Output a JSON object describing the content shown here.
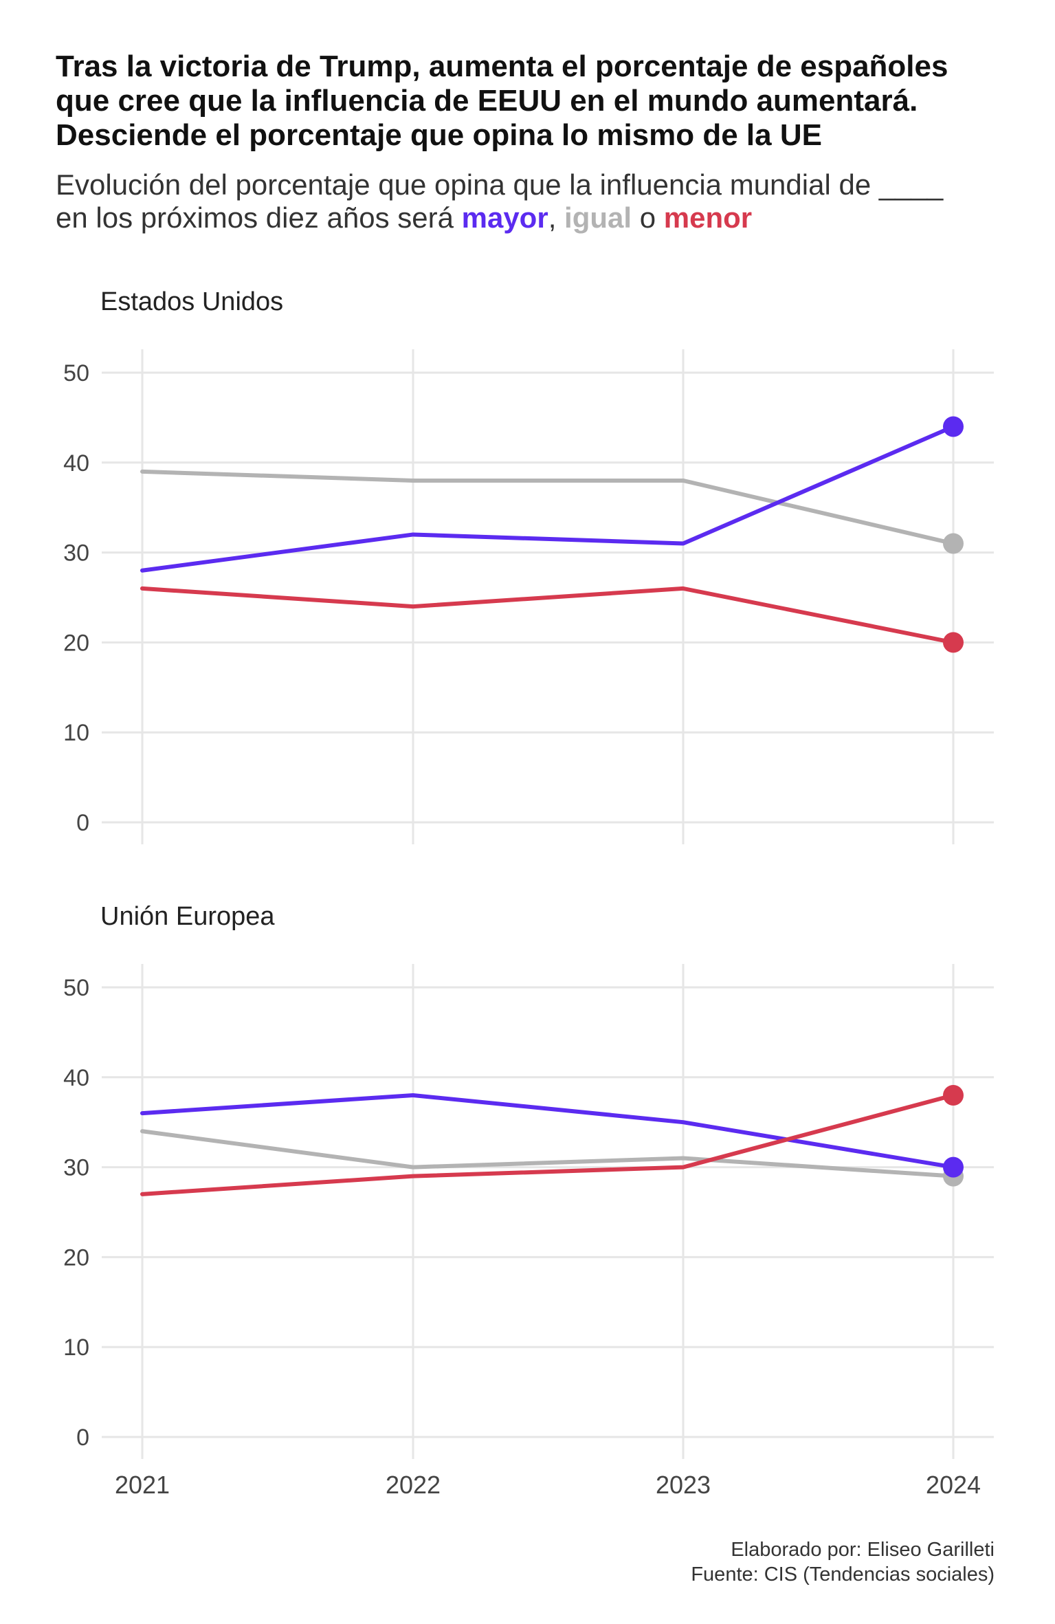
{
  "header": {
    "title_lines": [
      "Tras la victoria de Trump, aumenta el porcentaje de españoles",
      "que cree que la influencia de EEUU en el mundo aumentará.",
      "Desciende el porcentaje que opina lo mismo de la UE"
    ],
    "subtitle_line1": "Evolución del porcentaje que opina que la influencia mundial de ____",
    "subtitle_line2_prefix": "en los próximos diez años será ",
    "subtitle_kw_mayor": "mayor",
    "subtitle_sep1": ", ",
    "subtitle_kw_igual": "igual",
    "subtitle_sep2": " o ",
    "subtitle_kw_menor": "menor"
  },
  "colors": {
    "mayor": "#5B2BF0",
    "igual": "#B3B3B3",
    "menor": "#D63A4E",
    "grid": "#E6E6E6",
    "axis_text": "#444444"
  },
  "chart_data": [
    {
      "type": "line",
      "panel_title": "Estados Unidos",
      "x": [
        2021,
        2022,
        2023,
        2024
      ],
      "ylim": [
        0,
        50
      ],
      "yticks": [
        0,
        10,
        20,
        30,
        40,
        50
      ],
      "series": [
        {
          "name": "mayor",
          "values": [
            28,
            32,
            31,
            44
          ]
        },
        {
          "name": "igual",
          "values": [
            39,
            38,
            38,
            31
          ]
        },
        {
          "name": "menor",
          "values": [
            26,
            24,
            26,
            20
          ]
        }
      ],
      "grid": true,
      "endpoint_markers": true
    },
    {
      "type": "line",
      "panel_title": "Unión Europea",
      "x": [
        2021,
        2022,
        2023,
        2024
      ],
      "ylim": [
        0,
        50
      ],
      "yticks": [
        0,
        10,
        20,
        30,
        40,
        50
      ],
      "series": [
        {
          "name": "mayor",
          "values": [
            36,
            38,
            35,
            30
          ]
        },
        {
          "name": "igual",
          "values": [
            34,
            30,
            31,
            29
          ]
        },
        {
          "name": "menor",
          "values": [
            27,
            29,
            30,
            38
          ]
        }
      ],
      "grid": true,
      "endpoint_markers": true
    }
  ],
  "x_tick_labels": [
    "2021",
    "2022",
    "2023",
    "2024"
  ],
  "caption": {
    "line1": "Elaborado por: Eliseo Garilleti",
    "line2": "Fuente: CIS (Tendencias sociales)"
  }
}
